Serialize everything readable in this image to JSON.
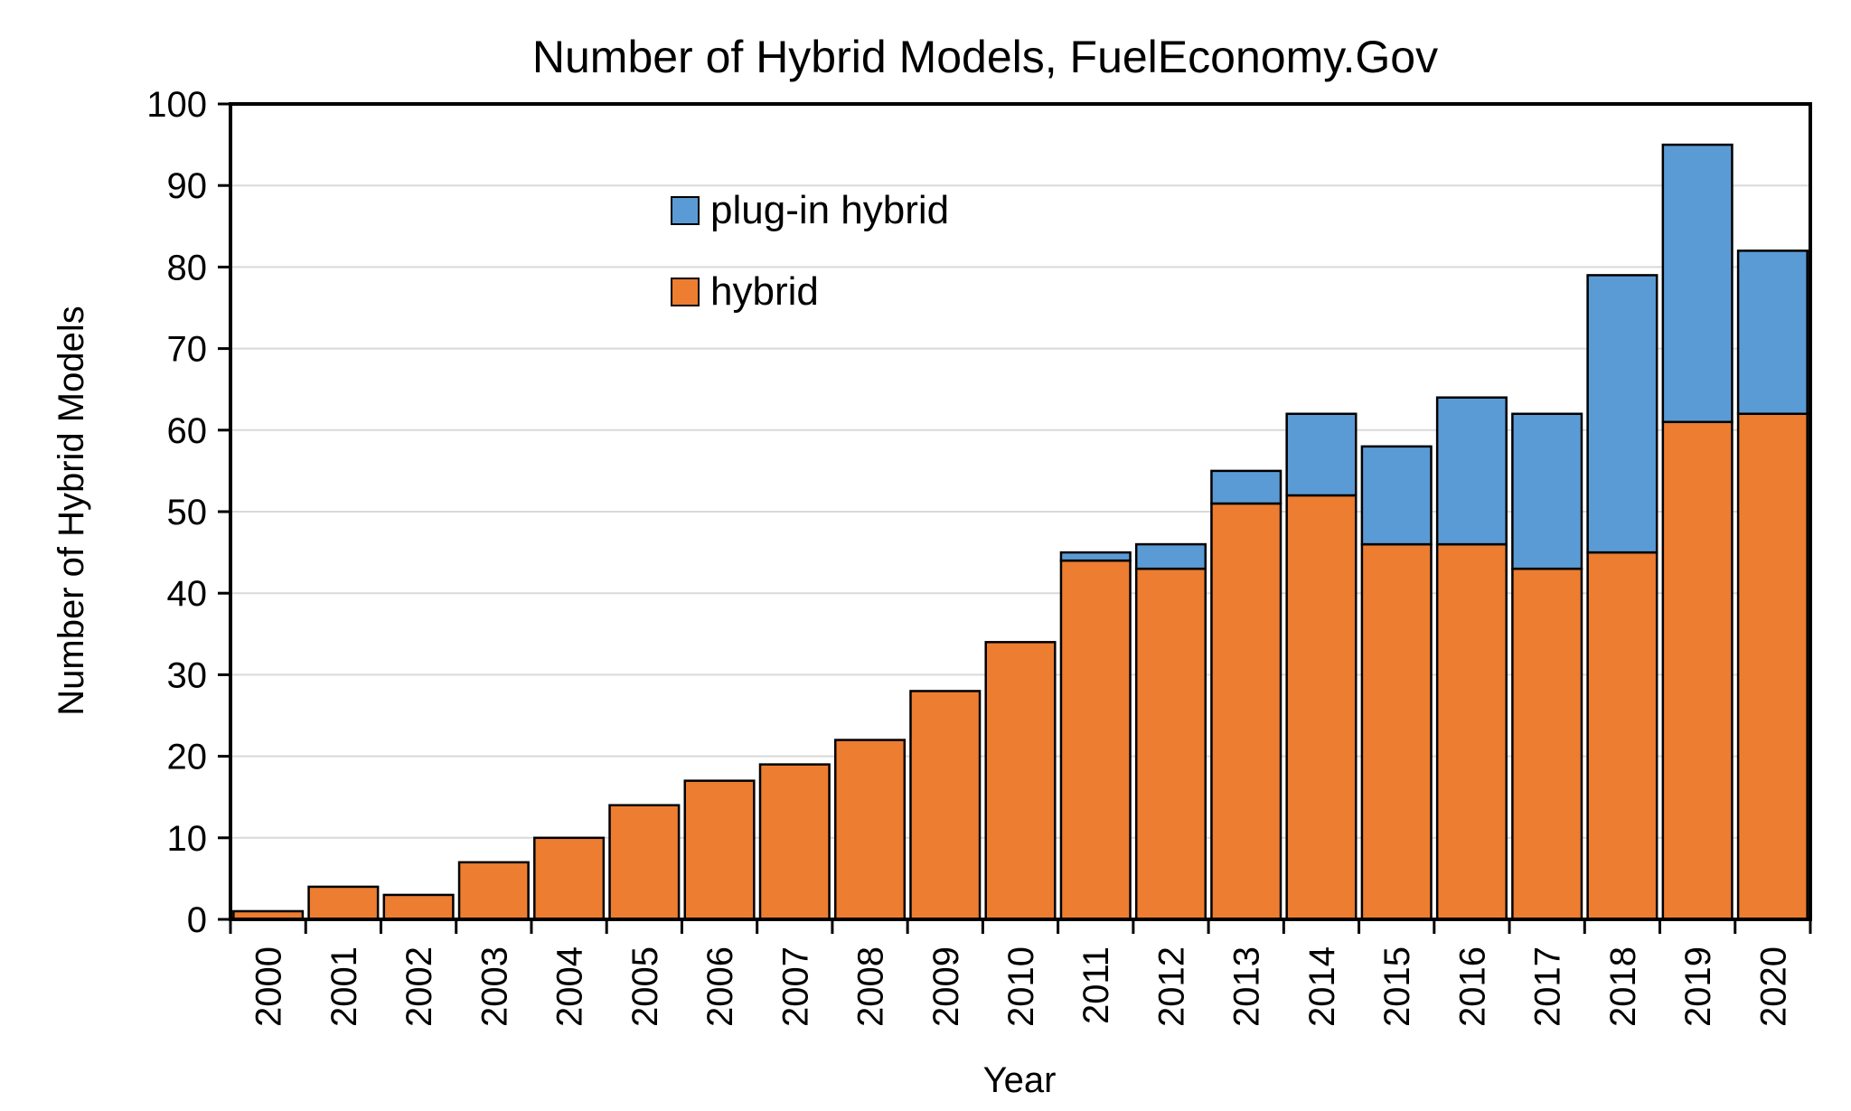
{
  "chart_data": {
    "type": "bar",
    "stacked": true,
    "title": "Number of Hybrid Models, FuelEconomy.Gov",
    "xlabel": "Year",
    "ylabel": "Number of Hybrid Models",
    "ylim": [
      0,
      100
    ],
    "yticks": [
      0,
      10,
      20,
      30,
      40,
      50,
      60,
      70,
      80,
      90,
      100
    ],
    "grid": true,
    "legend_position": "upper-center-left",
    "categories": [
      "2000",
      "2001",
      "2002",
      "2003",
      "2004",
      "2005",
      "2006",
      "2007",
      "2008",
      "2009",
      "2010",
      "2011",
      "2012",
      "2013",
      "2014",
      "2015",
      "2016",
      "2017",
      "2018",
      "2019",
      "2020"
    ],
    "series": [
      {
        "name": "hybrid",
        "color": "#ED7D31",
        "values": [
          1,
          4,
          3,
          7,
          10,
          14,
          17,
          19,
          22,
          28,
          34,
          44,
          43,
          51,
          52,
          46,
          46,
          43,
          45,
          61,
          62
        ]
      },
      {
        "name": "plug-in hybrid",
        "color": "#5B9BD5",
        "values": [
          0,
          0,
          0,
          0,
          0,
          0,
          0,
          0,
          0,
          0,
          0,
          1,
          3,
          4,
          10,
          12,
          18,
          19,
          34,
          34,
          20
        ]
      }
    ],
    "legend": [
      {
        "name": "plug-in hybrid",
        "color": "#5B9BD5"
      },
      {
        "name": "hybrid",
        "color": "#ED7D31"
      }
    ]
  }
}
